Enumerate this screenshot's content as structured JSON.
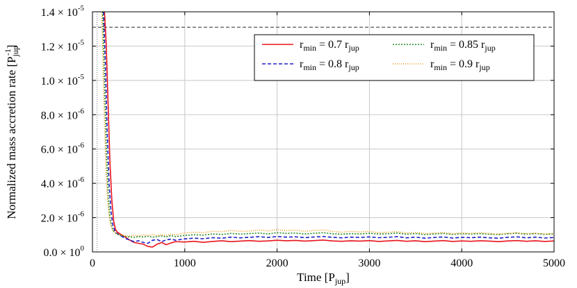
{
  "chart_data": {
    "type": "line",
    "xlabel": "Time [P",
    "xlabel_sub": "jup",
    "xlabel_end": "]",
    "ylabel": "Normalized mass accretion rate [P",
    "ylabel_sub": "jup",
    "ylabel_sup": "-1",
    "ylabel_end": "]",
    "xlim": [
      0,
      5000
    ],
    "ylim": [
      0,
      1.4e-05
    ],
    "grid": true,
    "legend_placement": "top-right",
    "x_ticks": [
      {
        "value": 0,
        "label": "0"
      },
      {
        "value": 1000,
        "label": "1000"
      },
      {
        "value": 2000,
        "label": "2000"
      },
      {
        "value": 3000,
        "label": "3000"
      },
      {
        "value": 4000,
        "label": "4000"
      },
      {
        "value": 5000,
        "label": "5000"
      }
    ],
    "y_ticks": [
      {
        "value": 0,
        "mant": "0.0",
        "exp": "0"
      },
      {
        "value": 2e-06,
        "mant": "2.0",
        "exp": "-6"
      },
      {
        "value": 4e-06,
        "mant": "4.0",
        "exp": "-6"
      },
      {
        "value": 6e-06,
        "mant": "6.0",
        "exp": "-6"
      },
      {
        "value": 8e-06,
        "mant": "8.0",
        "exp": "-6"
      },
      {
        "value": 1e-05,
        "mant": "1.0",
        "exp": "-5"
      },
      {
        "value": 1.2e-05,
        "mant": "1.2",
        "exp": "-5"
      },
      {
        "value": 1.4e-05,
        "mant": "1.4",
        "exp": "-5"
      }
    ],
    "reference_hline": 1.31e-05,
    "reference_vline": 50,
    "series": [
      {
        "name_sub_label": "min",
        "name_mid": " = 0.7 r",
        "name_end_sub": "jup",
        "color": "#e8141c",
        "dash": "",
        "x": [
          130,
          150,
          170,
          190,
          210,
          230,
          250,
          270,
          300,
          330,
          360,
          400,
          450,
          500,
          550,
          600,
          650,
          700,
          750,
          800,
          850,
          900,
          1000,
          1100,
          1200,
          1300,
          1400,
          1500,
          1600,
          1700,
          1800,
          1900,
          2000,
          2100,
          2200,
          2300,
          2400,
          2500,
          2600,
          2700,
          2800,
          2900,
          3000,
          3100,
          3200,
          3300,
          3400,
          3500,
          3600,
          3700,
          3800,
          3900,
          4000,
          4100,
          4200,
          4300,
          4400,
          4500,
          4600,
          4700,
          4800,
          4900,
          5000
        ],
        "y": [
          1.4e-05,
          1.2e-05,
          8.5e-06,
          5.2e-06,
          3e-06,
          1.8e-06,
          1.3e-06,
          1.15e-06,
          1.05e-06,
          9.5e-07,
          8.5e-07,
          7e-07,
          5.5e-07,
          5e-07,
          4.5e-07,
          3.2e-07,
          2.8e-07,
          4.5e-07,
          5.5e-07,
          4.2e-07,
          5.2e-07,
          6e-07,
          5.8e-07,
          6.2e-07,
          5.6e-07,
          6.1e-07,
          6.5e-07,
          6e-07,
          6.3e-07,
          6.6e-07,
          6.2e-07,
          6.4e-07,
          6.8e-07,
          6.5e-07,
          6.7e-07,
          6.3e-07,
          6.6e-07,
          6.9e-07,
          6.4e-07,
          6.2e-07,
          6.5e-07,
          6.3e-07,
          6.6e-07,
          6.1e-07,
          6.4e-07,
          6.7e-07,
          6.2e-07,
          6.5e-07,
          6e-07,
          6.3e-07,
          6.6e-07,
          6.1e-07,
          6.4e-07,
          6.2e-07,
          6.5e-07,
          6.3e-07,
          6e-07,
          6.4e-07,
          6.6e-07,
          6.2e-07,
          6.5e-07,
          6.1e-07,
          6.4e-07
        ]
      },
      {
        "name_sub_label": "min",
        "name_mid": " = 0.8 r",
        "name_end_sub": "jup",
        "color": "#1c1cc8",
        "dash": "5,3",
        "x": [
          120,
          140,
          160,
          180,
          200,
          220,
          240,
          260,
          290,
          320,
          350,
          400,
          450,
          500,
          550,
          600,
          650,
          700,
          750,
          800,
          850,
          900,
          1000,
          1100,
          1200,
          1300,
          1400,
          1500,
          1600,
          1700,
          1800,
          1900,
          2000,
          2100,
          2200,
          2300,
          2400,
          2500,
          2600,
          2700,
          2800,
          2900,
          3000,
          3100,
          3200,
          3300,
          3400,
          3500,
          3600,
          3700,
          3800,
          3900,
          4000,
          4100,
          4200,
          4300,
          4400,
          4500,
          4600,
          4700,
          4800,
          4900,
          5000
        ],
        "y": [
          1.4e-05,
          1.1e-05,
          7e-06,
          4e-06,
          2.4e-06,
          1.6e-06,
          1.25e-06,
          1.1e-06,
          1e-06,
          9e-07,
          8e-07,
          7e-07,
          6e-07,
          6.5e-07,
          5.5e-07,
          5e-07,
          6.8e-07,
          7.2e-07,
          6e-07,
          7e-07,
          7.5e-07,
          6.8e-07,
          7.6e-07,
          8e-07,
          7.7e-07,
          8.3e-07,
          8e-07,
          8.6e-07,
          8.2e-07,
          8.5e-07,
          8.9e-07,
          8.4e-07,
          9e-07,
          8.6e-07,
          8.8e-07,
          8.3e-07,
          8.7e-07,
          9e-07,
          8.5e-07,
          8.2e-07,
          8.6e-07,
          8.4e-07,
          8.8e-07,
          8.3e-07,
          8.5e-07,
          8.9e-07,
          8.2e-07,
          8.6e-07,
          8e-07,
          8.4e-07,
          8.7e-07,
          8.1e-07,
          8.5e-07,
          8.3e-07,
          8.6e-07,
          8.2e-07,
          8e-07,
          8.5e-07,
          8.8e-07,
          8.2e-07,
          8.6e-07,
          8.1e-07,
          8.4e-07
        ]
      },
      {
        "name_sub_label": "min",
        "name_mid": " = 0.85 r",
        "name_end_sub": "jup",
        "color": "#1f8a1f",
        "dash": "2,2",
        "x": [
          110,
          130,
          150,
          170,
          190,
          210,
          230,
          250,
          280,
          310,
          350,
          400,
          450,
          500,
          550,
          600,
          650,
          700,
          750,
          800,
          850,
          900,
          1000,
          1100,
          1200,
          1300,
          1400,
          1500,
          1600,
          1700,
          1800,
          1900,
          2000,
          2100,
          2200,
          2300,
          2400,
          2500,
          2600,
          2700,
          2800,
          2900,
          3000,
          3100,
          3200,
          3300,
          3400,
          3500,
          3600,
          3700,
          3800,
          3900,
          4000,
          4100,
          4200,
          4300,
          4400,
          4500,
          4600,
          4700,
          4800,
          4900,
          5000
        ],
        "y": [
          1.4e-05,
          1e-05,
          6e-06,
          3.3e-06,
          2e-06,
          1.45e-06,
          1.2e-06,
          1.1e-06,
          1e-06,
          9.5e-07,
          9e-07,
          8.8e-07,
          8.5e-07,
          9e-07,
          8.7e-07,
          9.2e-07,
          8.6e-07,
          9e-07,
          9.3e-07,
          8.8e-07,
          9.5e-07,
          9e-07,
          9.6e-07,
          1e-06,
          9.8e-07,
          1.05e-06,
          1.02e-06,
          1.08e-06,
          1.04e-06,
          1.07e-06,
          1.1e-06,
          1.05e-06,
          1.12e-06,
          1.08e-06,
          1.1e-06,
          1.05e-06,
          1.09e-06,
          1.12e-06,
          1.06e-06,
          1.03e-06,
          1.07e-06,
          1.05e-06,
          1.09e-06,
          1.04e-06,
          1.06e-06,
          1.1e-06,
          1.03e-06,
          1.07e-06,
          1.01e-06,
          1.05e-06,
          1.08e-06,
          1.02e-06,
          1.06e-06,
          1.04e-06,
          1.07e-06,
          1.03e-06,
          1.01e-06,
          1.06e-06,
          1.09e-06,
          1.03e-06,
          1.07e-06,
          1.02e-06,
          1.05e-06
        ]
      },
      {
        "name_sub_label": "min",
        "name_mid": " = 0.9 r",
        "name_end_sub": "jup",
        "color": "#f0960f",
        "dash": "1,2",
        "x": [
          100,
          115,
          130,
          145,
          160,
          175,
          195,
          215,
          240,
          270,
          300,
          350,
          400,
          450,
          500,
          550,
          600,
          650,
          700,
          750,
          800,
          850,
          900,
          1000,
          1100,
          1200,
          1300,
          1400,
          1500,
          1600,
          1700,
          1800,
          1900,
          2000,
          2100,
          2200,
          2300,
          2400,
          2500,
          2600,
          2700,
          2800,
          2900,
          3000,
          3100,
          3200,
          3300,
          3400,
          3500,
          3600,
          3700,
          3800,
          3900,
          4000,
          4100,
          4200,
          4300,
          4400,
          4500,
          4600,
          4700,
          4800,
          4900,
          5000
        ],
        "y": [
          1.4e-05,
          1.05e-05,
          7.5e-06,
          5e-06,
          3.3e-06,
          2.3e-06,
          1.6e-06,
          1.3e-06,
          1.15e-06,
          1.05e-06,
          1e-06,
          9.6e-07,
          9.2e-07,
          9.8e-07,
          9.4e-07,
          1e-06,
          9.5e-07,
          1.02e-06,
          9.6e-07,
          1e-06,
          9.7e-07,
          1.03e-06,
          1e-06,
          1.1e-06,
          1.15e-06,
          1.12e-06,
          1.2e-06,
          1.18e-06,
          1.25e-06,
          1.2e-06,
          1.22e-06,
          1.28e-06,
          1.22e-06,
          1.3e-06,
          1.24e-06,
          1.27e-06,
          1.2e-06,
          1.25e-06,
          1.28e-06,
          1.2e-06,
          1.15e-06,
          1.2e-06,
          1.16e-06,
          1.2e-06,
          1.12e-06,
          1.15e-06,
          1.18e-06,
          1.1e-06,
          1.13e-06,
          1.07e-06,
          1.1e-06,
          1.13e-06,
          1.06e-06,
          1.1e-06,
          1.08e-06,
          1.12e-06,
          1.07e-06,
          1.04e-06,
          1.09e-06,
          1.12e-06,
          1.06e-06,
          1.1e-06,
          1.05e-06,
          1.08e-06
        ]
      }
    ]
  }
}
